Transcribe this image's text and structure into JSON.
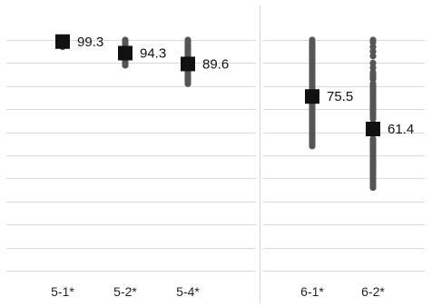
{
  "chart_data": {
    "type": "scatter",
    "description_style": "dot-strip with mean markers, two panels",
    "ylim": [
      0,
      100
    ],
    "grid": true,
    "colors": {
      "points": "#555555",
      "mean_marker": "#111111",
      "grid": "#d9d9d9",
      "panel_divider": "#d9d9d9"
    },
    "panels": [
      {
        "categories": [
          {
            "label": "5-1*",
            "mean": 99.3,
            "mean_label": "99.3",
            "points": [
              100,
              99,
              98,
              97
            ]
          },
          {
            "label": "5-2*",
            "mean": 94.3,
            "mean_label": "94.3",
            "points": [
              100,
              99,
              98,
              97,
              96,
              95,
              93,
              92,
              91,
              90,
              89
            ]
          },
          {
            "label": "5-4*",
            "mean": 89.6,
            "mean_label": "89.6",
            "points": [
              100,
              99,
              98,
              97,
              96,
              95,
              94,
              93,
              92,
              91,
              90,
              89,
              88,
              87,
              86,
              85,
              84,
              83,
              82,
              81
            ]
          }
        ]
      },
      {
        "categories": [
          {
            "label": "6-1*",
            "mean": 75.5,
            "mean_label": "75.5",
            "points": [
              100,
              99,
              98,
              97,
              96,
              95,
              94,
              93,
              92,
              91,
              90,
              89,
              88,
              87,
              86,
              85,
              84,
              83,
              82,
              81,
              80,
              79,
              78,
              77,
              76,
              75,
              74,
              73,
              72,
              71,
              70,
              69,
              68,
              67,
              66,
              65,
              64,
              63,
              62,
              61,
              60,
              59,
              58,
              57,
              56,
              55,
              54
            ]
          },
          {
            "label": "6-2*",
            "mean": 61.4,
            "mean_label": "61.4",
            "points": [
              100,
              99,
              97,
              95,
              93,
              90,
              88,
              86,
              85,
              84,
              83,
              81,
              80,
              79,
              78,
              77,
              76,
              75,
              74,
              73,
              72,
              71,
              70,
              69,
              68,
              67,
              66,
              64,
              62,
              60,
              59,
              57,
              56,
              55,
              54,
              53,
              52,
              51,
              50,
              49,
              48,
              47,
              46,
              45,
              44,
              43,
              42,
              41,
              40,
              39,
              38,
              37,
              36
            ]
          }
        ]
      }
    ]
  }
}
